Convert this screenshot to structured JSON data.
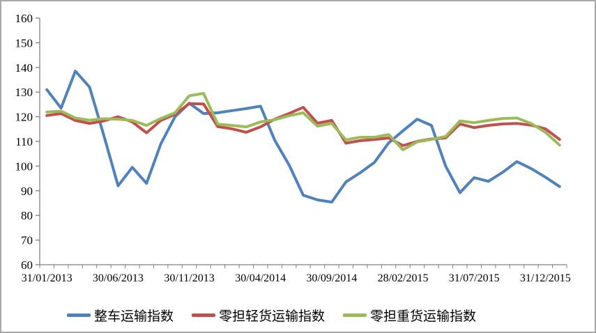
{
  "chart_data": {
    "type": "line",
    "title": "",
    "xlabel": "",
    "ylabel": "",
    "ylim": [
      60,
      160
    ],
    "y_step": 10,
    "grid": false,
    "legend_position": "bottom",
    "n_points": 37,
    "x_ticks": [
      {
        "index": 0,
        "label": "31/01/2013"
      },
      {
        "index": 5,
        "label": "30/06/2013"
      },
      {
        "index": 10,
        "label": "30/11/2013"
      },
      {
        "index": 15,
        "label": "30/04/2014"
      },
      {
        "index": 20,
        "label": "30/09/2014"
      },
      {
        "index": 25,
        "label": "28/02/2015"
      },
      {
        "index": 30,
        "label": "31/07/2015"
      },
      {
        "index": 35,
        "label": "31/12/2015"
      }
    ],
    "series": [
      {
        "name": "整车运输指数",
        "color": "#4F81BD",
        "values": [
          131,
          123.5,
          138.5,
          132,
          112.5,
          92,
          99.5,
          93,
          109,
          120,
          125.5,
          121.3,
          121.6,
          122.5,
          123.3,
          124.3,
          110.5,
          100.5,
          88.2,
          86.3,
          85.4,
          93.6,
          97.3,
          101.5,
          109.4,
          114.3,
          119,
          116.5,
          100,
          89.2,
          95.3,
          93.8,
          97.5,
          101.8,
          99,
          95.5,
          91.7
        ]
      },
      {
        "name": "零担轻货运输指数",
        "color": "#C0504D",
        "values": [
          120.5,
          121.3,
          118.5,
          117.3,
          118.3,
          120,
          117.9,
          113.5,
          118.5,
          121,
          125.3,
          125.2,
          116,
          115.1,
          113.7,
          115.9,
          119,
          121.3,
          123.8,
          117.4,
          118.5,
          109.3,
          110.3,
          110.8,
          111.4,
          108.3,
          110,
          111,
          111.4,
          117.1,
          115.6,
          116.5,
          117.1,
          117.3,
          116.6,
          115.1,
          110.8
        ]
      },
      {
        "name": "零担重货运输指数",
        "color": "#9BBB59",
        "values": [
          121.9,
          122.3,
          119.5,
          118.6,
          119.2,
          119,
          118.5,
          116.5,
          119.3,
          121.6,
          128.5,
          129.5,
          117,
          116.5,
          115.9,
          117.9,
          118.8,
          120.4,
          121.6,
          116.2,
          117.3,
          110.6,
          111.7,
          111.7,
          112.8,
          106.6,
          109.8,
          110.8,
          112,
          118.3,
          117.6,
          118.5,
          119.3,
          119.5,
          117.3,
          113.7,
          108.5
        ]
      }
    ],
    "axis_color": "#7f7f7f",
    "text_color": "#000000"
  }
}
